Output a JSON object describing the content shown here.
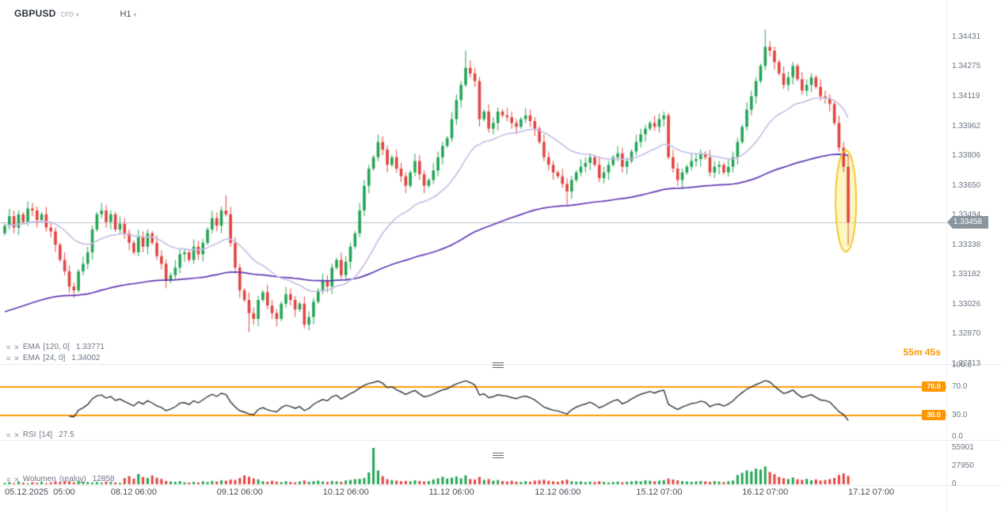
{
  "header": {
    "symbol": "GBPUSD",
    "instrument_type": "CFD",
    "timeframe": "H1"
  },
  "colors": {
    "up": "#23a455",
    "down": "#e04540",
    "ema_fast": "#c7bfe6",
    "ema_slow": "#5e35b1",
    "rsi_line": "#2d3436",
    "level_orange": "#ff9800",
    "highlight_yellow": "#f0c929",
    "price_badge": "#8b959e",
    "current_price_line": "#b8bfc6"
  },
  "price_axis": {
    "labels": [
      "1.34431",
      "1.34275",
      "1.34119",
      "1.33962",
      "1.33806",
      "1.33650",
      "1.33494",
      "1.33338",
      "1.33182",
      "1.33026",
      "1.32870",
      "1.32713"
    ]
  },
  "current_price": "1.33458",
  "countdown": "55m 45s",
  "legends": {
    "ema_slow": {
      "name": "EMA",
      "params": "[120, 0]",
      "value": "1.33771"
    },
    "ema_fast": {
      "name": "EMA",
      "params": "[24, 0]",
      "value": "1.34002"
    },
    "rsi": {
      "name": "RSI",
      "params": "[14]",
      "value": "27.5"
    },
    "volume": {
      "name": "Wolumen",
      "params": "(realny)",
      "value": "12858"
    }
  },
  "rsi_panel": {
    "axis_labels": [
      "100.0",
      "70.0",
      "30.0",
      "0.0"
    ],
    "axis_values": [
      100,
      70,
      30,
      0
    ],
    "badge_labels": [
      "70.0",
      "30.0"
    ],
    "badge_values": [
      70,
      30
    ]
  },
  "volume_panel": {
    "axis_labels": [
      "55901",
      "27950",
      "0"
    ],
    "axis_values": [
      55901,
      27950,
      0
    ],
    "max": 55901
  },
  "time_axis": [
    {
      "label": "05.12.2025  05:00",
      "index": 0
    },
    {
      "label": "08.12 06:00",
      "index": 23
    },
    {
      "label": "09.12 06:00",
      "index": 46
    },
    {
      "label": "10.12 06:00",
      "index": 69
    },
    {
      "label": "11.12 06:00",
      "index": 92
    },
    {
      "label": "12.12 06:00",
      "index": 115
    },
    {
      "label": "15.12 07:00",
      "index": 137
    },
    {
      "label": "16.12 07:00",
      "index": 160
    },
    {
      "label": "17.12 07:00",
      "index": 183
    }
  ],
  "chart_data": {
    "type": "candlestick",
    "title": "GBPUSD H1",
    "symbol": "GBPUSD",
    "timeframe": "H1",
    "ylim": [
      1.32713,
      1.34431
    ],
    "current_price": 1.33458,
    "open_first": 1.334,
    "closes": [
      1.3344,
      1.3349,
      1.3343,
      1.335,
      1.3346,
      1.3353,
      1.3352,
      1.3347,
      1.335,
      1.3343,
      1.3341,
      1.3334,
      1.3326,
      1.332,
      1.3312,
      1.331,
      1.332,
      1.3324,
      1.333,
      1.3342,
      1.335,
      1.3352,
      1.3346,
      1.335,
      1.3342,
      1.3345,
      1.334,
      1.3335,
      1.333,
      1.3338,
      1.3333,
      1.334,
      1.3335,
      1.3328,
      1.3324,
      1.3315,
      1.3318,
      1.3322,
      1.3329,
      1.333,
      1.3326,
      1.3333,
      1.3329,
      1.3335,
      1.3342,
      1.3348,
      1.3344,
      1.3352,
      1.335,
      1.3335,
      1.3322,
      1.331,
      1.3305,
      1.3298,
      1.3295,
      1.3305,
      1.3309,
      1.3302,
      1.3298,
      1.3295,
      1.3303,
      1.3308,
      1.3305,
      1.33,
      1.3303,
      1.3292,
      1.3296,
      1.3304,
      1.331,
      1.3315,
      1.3312,
      1.3322,
      1.3326,
      1.3318,
      1.3325,
      1.3333,
      1.334,
      1.3352,
      1.3365,
      1.3374,
      1.338,
      1.3388,
      1.3384,
      1.3376,
      1.338,
      1.3374,
      1.337,
      1.3365,
      1.3372,
      1.3378,
      1.3371,
      1.3365,
      1.3368,
      1.3373,
      1.338,
      1.3386,
      1.339,
      1.34,
      1.341,
      1.3418,
      1.3427,
      1.3424,
      1.342,
      1.34,
      1.3404,
      1.3395,
      1.3398,
      1.3404,
      1.3402,
      1.3401,
      1.3398,
      1.3396,
      1.34,
      1.3402,
      1.3399,
      1.3395,
      1.3388,
      1.338,
      1.3376,
      1.3372,
      1.337,
      1.3366,
      1.3362,
      1.3368,
      1.3372,
      1.3375,
      1.3377,
      1.338,
      1.3376,
      1.3369,
      1.3372,
      1.3376,
      1.338,
      1.3382,
      1.3375,
      1.3378,
      1.3383,
      1.3388,
      1.3392,
      1.3395,
      1.3398,
      1.3396,
      1.34,
      1.3402,
      1.338,
      1.3374,
      1.3368,
      1.3372,
      1.3375,
      1.3378,
      1.3379,
      1.3382,
      1.338,
      1.3372,
      1.3375,
      1.3376,
      1.3372,
      1.3375,
      1.338,
      1.3388,
      1.3396,
      1.3405,
      1.3412,
      1.342,
      1.3428,
      1.3438,
      1.3436,
      1.343,
      1.3424,
      1.3418,
      1.3422,
      1.3428,
      1.3421,
      1.3415,
      1.3418,
      1.3422,
      1.3417,
      1.3412,
      1.3411,
      1.3408,
      1.3398,
      1.3385,
      1.3375,
      1.33458
    ],
    "wick_overrides": {
      "48": {
        "high": 1.336
      },
      "53": {
        "low": 1.3288
      },
      "100": {
        "high": 1.3436
      },
      "122": {
        "low": 1.3355
      },
      "165": {
        "high": 1.3447
      },
      "183": {
        "low": 1.3334,
        "high": 1.3381
      }
    },
    "volumes": [
      2100,
      3400,
      1800,
      4200,
      2600,
      1500,
      3100,
      2300,
      3900,
      1700,
      2800,
      4600,
      3200,
      5100,
      4400,
      3000,
      5600,
      4100,
      3500,
      2700,
      3300,
      2500,
      4000,
      3600,
      2900,
      2200,
      9400,
      12600,
      8700,
      15800,
      11200,
      9800,
      13400,
      10100,
      8200,
      5200,
      4300,
      3700,
      4800,
      3100,
      2600,
      3900,
      2800,
      4500,
      3400,
      5100,
      4200,
      6300,
      5500,
      7200,
      6800,
      9800,
      13500,
      11700,
      8900,
      7600,
      4800,
      3900,
      5400,
      4100,
      3200,
      4700,
      3600,
      2900,
      4400,
      5800,
      3700,
      4900,
      5600,
      4300,
      3500,
      5200,
      4600,
      3800,
      5900,
      6700,
      7800,
      8400,
      9600,
      18400,
      55901,
      21300,
      12400,
      7800,
      6500,
      5700,
      4900,
      5300,
      4600,
      6100,
      5200,
      4400,
      5000,
      7400,
      9100,
      11600,
      8800,
      10300,
      12100,
      9200,
      13800,
      8100,
      7300,
      11400,
      6800,
      7900,
      5600,
      6400,
      5100,
      4300,
      5500,
      4100,
      3600,
      4800,
      3900,
      5700,
      6300,
      7100,
      5400,
      4600,
      3800,
      5900,
      7200,
      4700,
      3900,
      4400,
      3300,
      4100,
      3500,
      4800,
      3700,
      2900,
      3600,
      4200,
      3100,
      3800,
      4500,
      5300,
      4700,
      6100,
      5500,
      4800,
      5600,
      6400,
      8700,
      7300,
      6100,
      4900,
      4200,
      3700,
      4400,
      5100,
      4500,
      3800,
      4900,
      4100,
      3400,
      4700,
      5800,
      14200,
      17600,
      21400,
      19800,
      24100,
      22700,
      27300,
      18900,
      15600,
      11200,
      9400,
      8100,
      10600,
      7700,
      6900,
      8300,
      6200,
      7500,
      5800,
      6600,
      7900,
      9700,
      14300,
      16800,
      12858
    ],
    "ema": [
      {
        "period": 120,
        "seed": 1.3298,
        "color_key": "ema_slow",
        "current_value": 1.33771
      },
      {
        "period": 24,
        "seed": null,
        "color_key": "ema_fast",
        "current_value": 1.34002
      }
    ],
    "rsi_period": 14,
    "rsi_levels": [
      70,
      30
    ],
    "rsi_current": 27.5,
    "volume_current": 12858
  }
}
